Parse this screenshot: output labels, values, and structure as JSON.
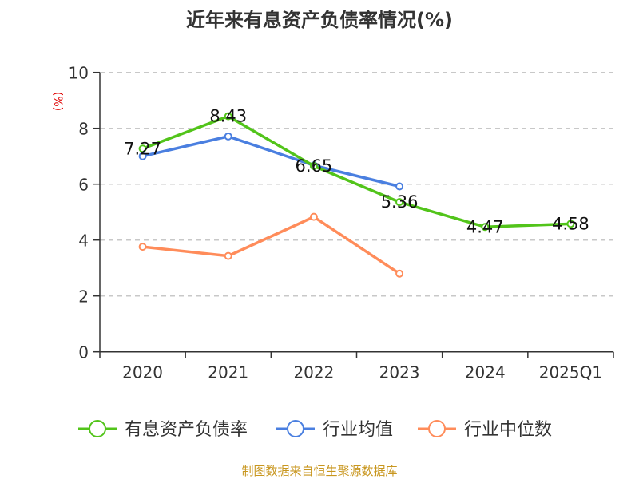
{
  "chart_data": {
    "type": "line",
    "title": "近年来有息资产负债率情况(%)",
    "ylabel": "(%)",
    "xlabel": "",
    "ylim": [
      0,
      10
    ],
    "yticks": [
      0,
      2,
      4,
      6,
      8,
      10
    ],
    "grid": true,
    "legend_placement": "bottom",
    "categories": [
      "2020",
      "2021",
      "2022",
      "2023",
      "2024",
      "2025Q1"
    ],
    "series": [
      {
        "name": "有息资产负债率",
        "color": "#52c41a",
        "values": [
          7.27,
          8.43,
          6.65,
          5.36,
          4.47,
          4.58
        ],
        "labels": [
          "7.27",
          "8.43",
          "6.65",
          "5.36",
          "4.47",
          "4.58"
        ]
      },
      {
        "name": "行业均值",
        "color": "#4a7fe0",
        "values": [
          7.0,
          7.71,
          6.67,
          5.92,
          null,
          null
        ]
      },
      {
        "name": "行业中位数",
        "color": "#ff8c5a",
        "values": [
          3.76,
          3.43,
          4.83,
          2.8,
          null,
          null
        ]
      }
    ],
    "source": "制图数据来自恒生聚源数据库",
    "source_color": "#c8961e",
    "ylabel_color": "#e00000"
  }
}
